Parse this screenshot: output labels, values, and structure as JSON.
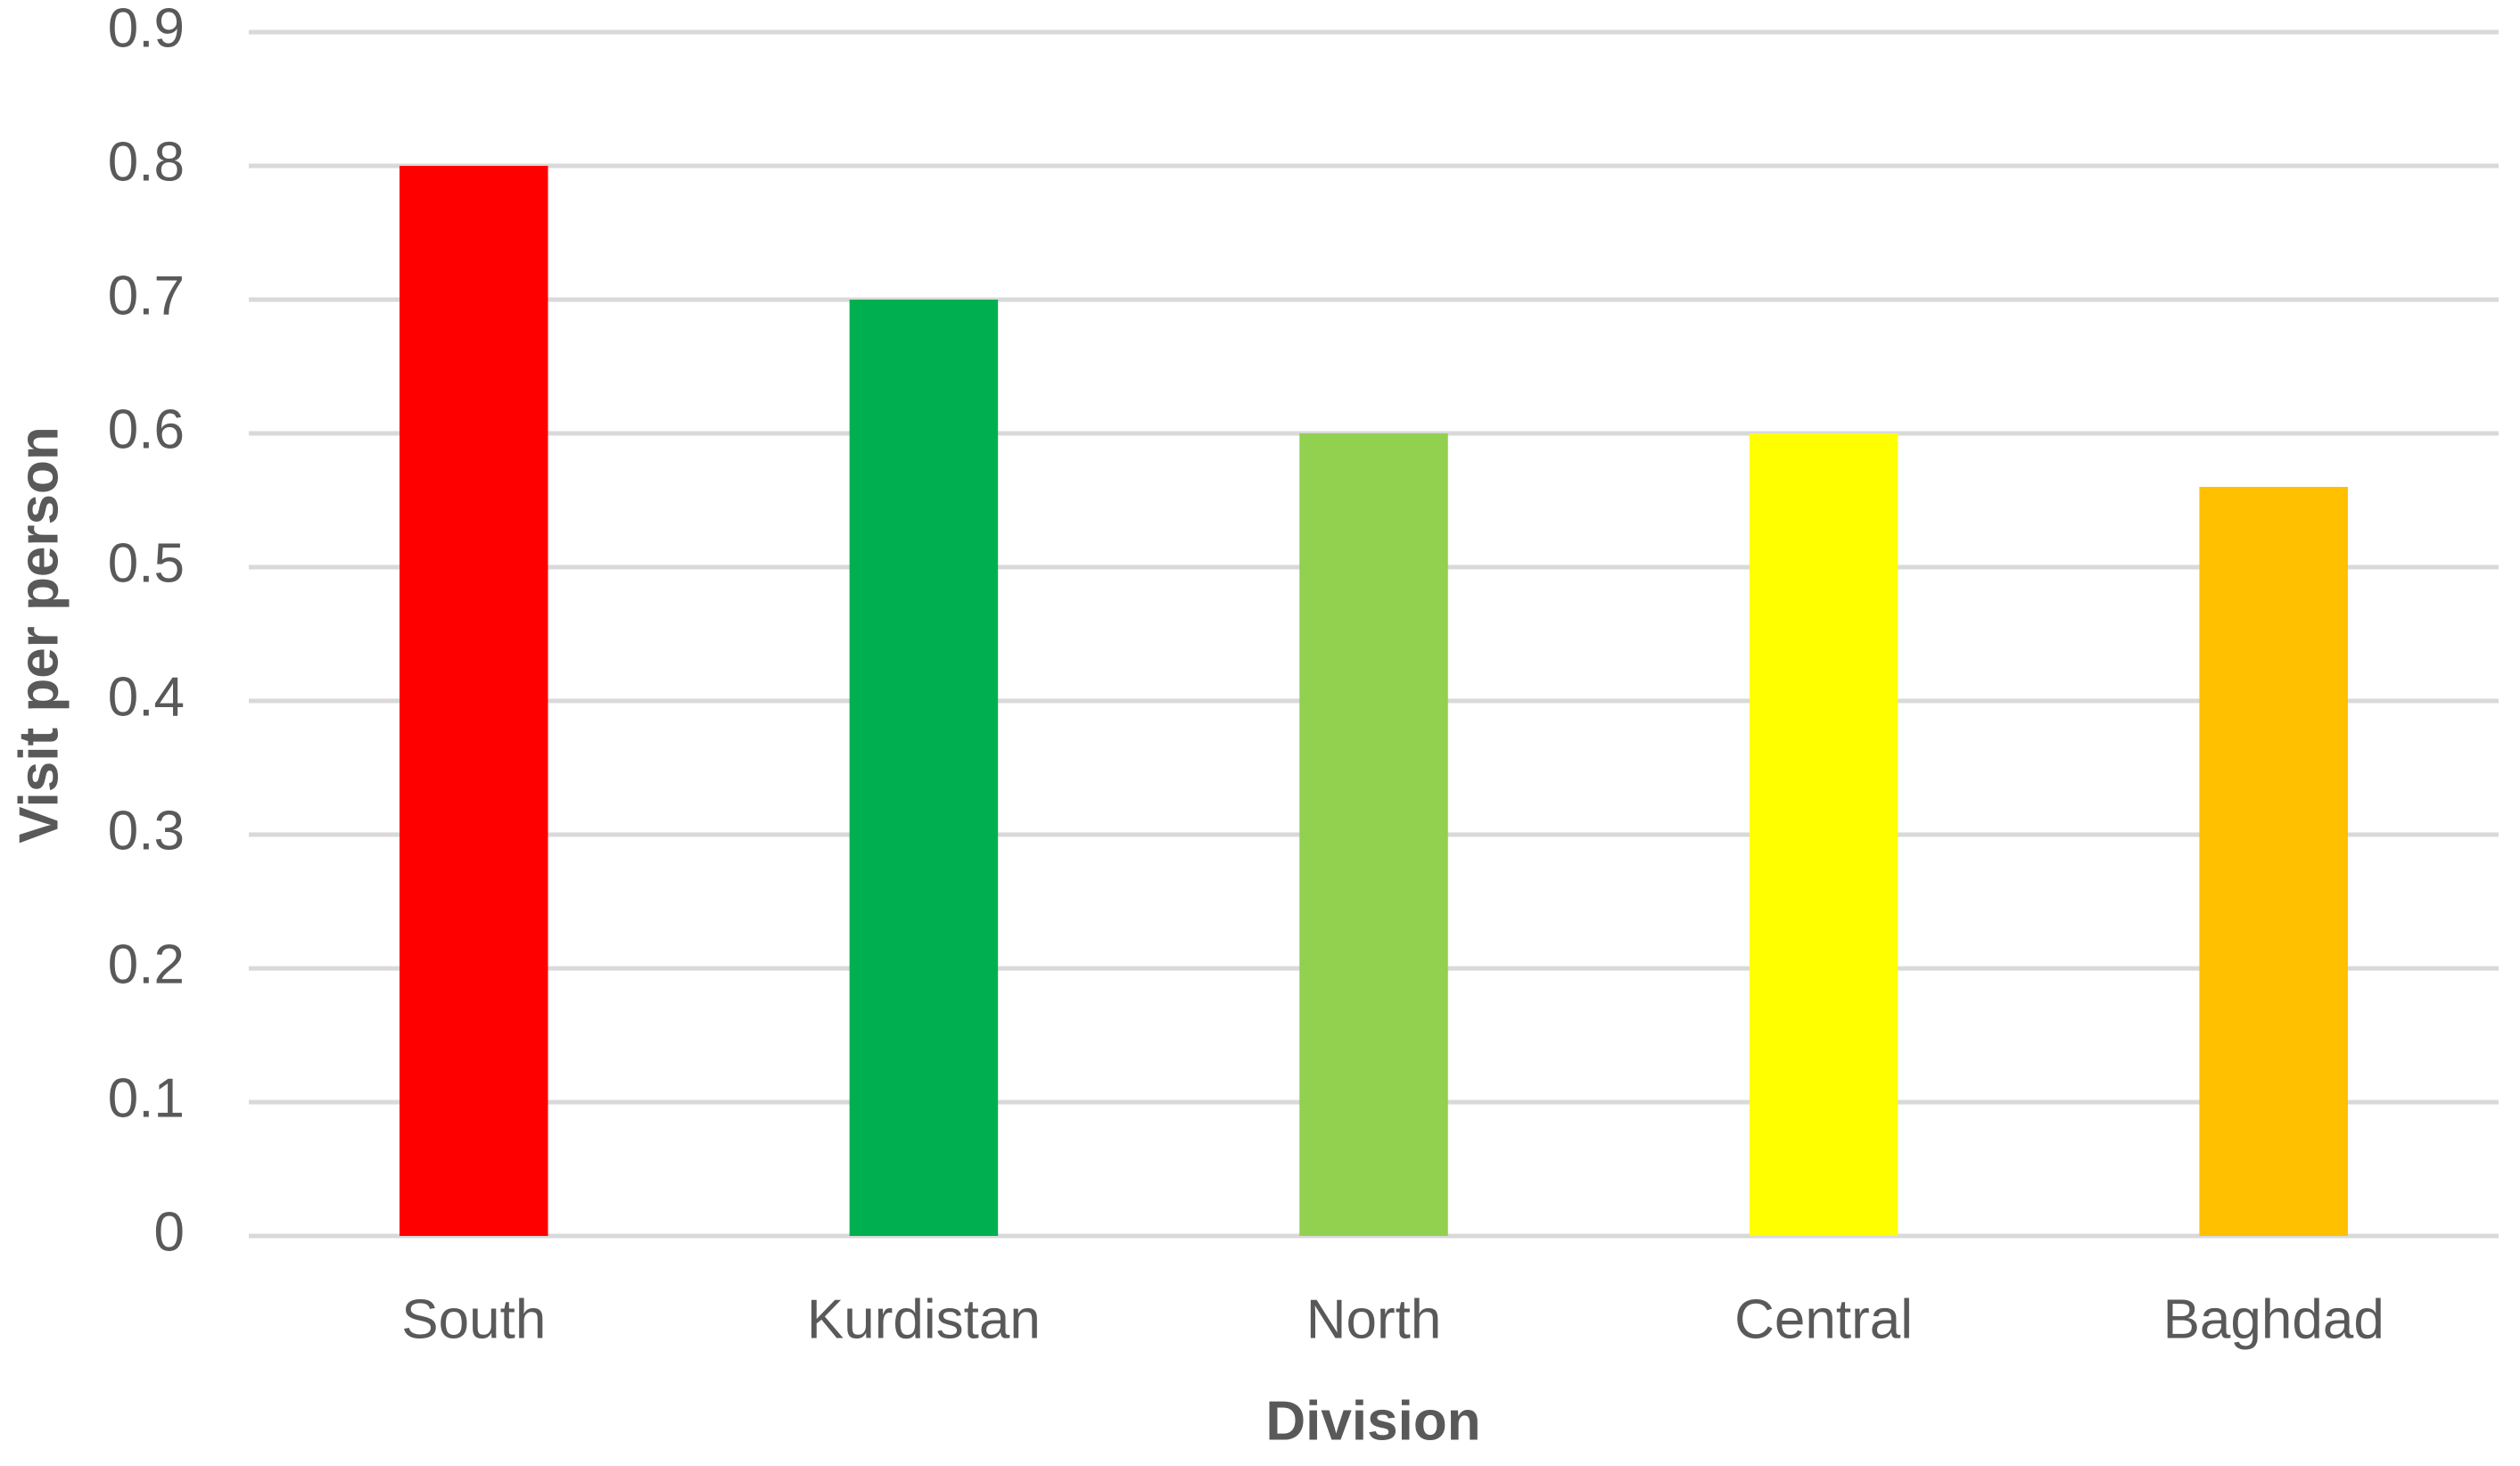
{
  "chart_data": {
    "type": "bar",
    "x_label": "Division",
    "y_label": "Visit per person",
    "categories": [
      "South",
      "Kurdistan",
      "North",
      "Central",
      "Baghdad"
    ],
    "values": [
      0.8,
      0.7,
      0.6,
      0.6,
      0.56
    ],
    "colors": [
      "#ff0000",
      "#00b050",
      "#92d050",
      "#ffff00",
      "#ffc000"
    ],
    "ylim": [
      0,
      0.9
    ],
    "yticks": [
      0,
      0.1,
      0.2,
      0.3,
      0.4,
      0.5,
      0.6,
      0.7,
      0.8,
      0.9
    ],
    "grid": true
  }
}
